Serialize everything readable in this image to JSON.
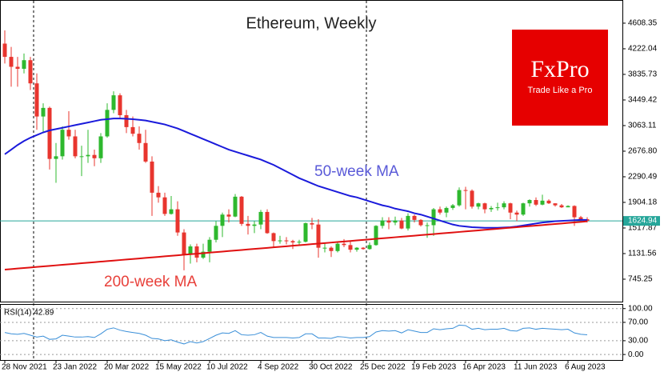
{
  "chart_data": {
    "type": "candlestick",
    "title": "Ethereum, Weekly",
    "categories": [
      "28 Nov 2021",
      null,
      null,
      null,
      null,
      null,
      null,
      null,
      "23 Jan 2022",
      null,
      null,
      null,
      null,
      null,
      null,
      null,
      "20 Mar 2022",
      null,
      null,
      null,
      null,
      null,
      null,
      null,
      "15 May 2022",
      null,
      null,
      null,
      null,
      null,
      null,
      null,
      "10 Jul 2022",
      null,
      null,
      null,
      null,
      null,
      null,
      null,
      "4 Sep 2022",
      null,
      null,
      null,
      null,
      null,
      null,
      null,
      "30 Oct 2022",
      null,
      null,
      null,
      null,
      null,
      null,
      null,
      "25 Dec 2022",
      null,
      null,
      null,
      null,
      null,
      null,
      null,
      "19 Feb 2023",
      null,
      null,
      null,
      null,
      null,
      null,
      null,
      "16 Apr 2023",
      null,
      null,
      null,
      null,
      null,
      null,
      null,
      "11 Jun 2023",
      null,
      null,
      null,
      null,
      null,
      null,
      null,
      "6 Aug 2023",
      null,
      null,
      null
    ],
    "open": [
      4300,
      4100,
      3950,
      3920,
      4050,
      3700,
      3200,
      3330,
      2560,
      2600,
      3000,
      2900,
      2600,
      2600,
      2620,
      2570,
      2900,
      3300,
      3520,
      3220,
      3040,
      2940,
      2800,
      2520,
      2050,
      1980,
      1730,
      1800,
      1450,
      1120,
      1240,
      1070,
      1160,
      1340,
      1550,
      1720,
      1690,
      1990,
      1580,
      1550,
      1570,
      1760,
      1440,
      1320,
      1330,
      1320,
      1300,
      1310,
      1590,
      1570,
      1220,
      1220,
      1170,
      1280,
      1260,
      1190,
      1220,
      1200,
      1260,
      1550,
      1630,
      1600,
      1630,
      1510,
      1700,
      1640,
      1560,
      1560,
      1800,
      1750,
      1820,
      1860,
      2090,
      2080,
      1840,
      1890,
      1800,
      1820,
      1830,
      1890,
      1750,
      1720,
      1890,
      1940,
      1870,
      1930,
      1890,
      1860,
      1830,
      1850,
      1680,
      1650
    ],
    "high": [
      4500,
      4250,
      4100,
      4150,
      4100,
      3850,
      3400,
      3350,
      2800,
      3050,
      3280,
      3000,
      2760,
      3000,
      2700,
      2950,
      3400,
      3580,
      3550,
      3300,
      3200,
      3050,
      3000,
      2600,
      2150,
      2050,
      2000,
      1920,
      1500,
      1270,
      1280,
      1280,
      1380,
      1620,
      1750,
      1800,
      2030,
      2000,
      1700,
      1620,
      1790,
      1800,
      1450,
      1400,
      1380,
      1340,
      1340,
      1600,
      1670,
      1650,
      1290,
      1240,
      1300,
      1350,
      1330,
      1230,
      1230,
      1300,
      1560,
      1680,
      1680,
      1690,
      1670,
      1740,
      1720,
      1650,
      1600,
      1820,
      1840,
      1840,
      1880,
      2130,
      2140,
      2100,
      1900,
      1900,
      1850,
      1900,
      1920,
      1900,
      1780,
      1900,
      1950,
      1980,
      2020,
      1950,
      1890,
      1880,
      1860,
      1860,
      1700,
      1680
    ],
    "low": [
      4000,
      3650,
      3650,
      3850,
      3600,
      3000,
      2950,
      2400,
      2200,
      2550,
      2850,
      2570,
      2300,
      2500,
      2450,
      2500,
      2880,
      3250,
      3180,
      2950,
      2900,
      2700,
      2500,
      1700,
      1900,
      1700,
      1720,
      1400,
      880,
      980,
      1000,
      1050,
      1000,
      1300,
      1380,
      1600,
      1680,
      1550,
      1420,
      1440,
      1500,
      1430,
      1220,
      1280,
      1270,
      1200,
      1260,
      1300,
      1500,
      1070,
      1150,
      1080,
      1150,
      1230,
      1150,
      1160,
      1190,
      1190,
      1250,
      1510,
      1500,
      1560,
      1500,
      1480,
      1600,
      1540,
      1370,
      1400,
      1720,
      1680,
      1790,
      1840,
      1800,
      1810,
      1800,
      1740,
      1760,
      1780,
      1800,
      1650,
      1620,
      1700,
      1840,
      1850,
      1860,
      1880,
      1840,
      1820,
      1830,
      1550,
      1610,
      1600
    ],
    "close": [
      4100,
      3950,
      3920,
      4050,
      3700,
      3200,
      3330,
      2560,
      2600,
      3000,
      2900,
      2600,
      2600,
      2620,
      2570,
      2900,
      3300,
      3520,
      3220,
      3040,
      2940,
      2800,
      2520,
      2050,
      1980,
      1730,
      1800,
      1450,
      1120,
      1240,
      1070,
      1160,
      1340,
      1550,
      1720,
      1690,
      1990,
      1580,
      1550,
      1570,
      1760,
      1440,
      1320,
      1330,
      1320,
      1300,
      1310,
      1590,
      1570,
      1220,
      1220,
      1170,
      1280,
      1260,
      1190,
      1220,
      1200,
      1260,
      1550,
      1630,
      1600,
      1630,
      1510,
      1700,
      1640,
      1560,
      1560,
      1800,
      1750,
      1820,
      1860,
      2090,
      2080,
      1840,
      1890,
      1800,
      1820,
      1830,
      1890,
      1750,
      1720,
      1890,
      1940,
      1870,
      1930,
      1890,
      1860,
      1830,
      1850,
      1680,
      1650,
      1624.94
    ],
    "up_color": "#2eb82e",
    "down_color": "#e8352e",
    "last_price_color": "#26a69a",
    "ylim": [
      407,
      4958
    ],
    "yticks": [
      4608.35,
      4222.04,
      3835.73,
      3449.42,
      3063.11,
      {
        "value": 2676.8,
        "label": "2676.80"
      },
      2290.49,
      1904.18,
      1517.87,
      1131.56,
      745.25
    ],
    "lines": [
      {
        "name": "50-week MA",
        "color": "#1a1adb",
        "label_color": "#5a5ad8",
        "values": [
          2630,
          2700,
          2770,
          2830,
          2880,
          2920,
          2960,
          2990,
          3010,
          3030,
          3050,
          3070,
          3090,
          3110,
          3130,
          3150,
          3160,
          3170,
          3170,
          3165,
          3160,
          3150,
          3140,
          3120,
          3100,
          3080,
          3050,
          3020,
          2980,
          2940,
          2900,
          2860,
          2820,
          2780,
          2740,
          2700,
          2670,
          2640,
          2610,
          2580,
          2550,
          2510,
          2470,
          2420,
          2370,
          2320,
          2270,
          2230,
          2190,
          2150,
          2120,
          2090,
          2060,
          2030,
          2000,
          1980,
          1950,
          1920,
          1890,
          1860,
          1840,
          1810,
          1790,
          1770,
          1740,
          1720,
          1690,
          1660,
          1630,
          1600,
          1570,
          1550,
          1540,
          1530,
          1525,
          1520,
          1520,
          1520,
          1525,
          1530,
          1540,
          1555,
          1570,
          1585,
          1600,
          1610,
          1620,
          1625,
          1630,
          1635,
          1640,
          1640
        ]
      },
      {
        "name": "200-week MA",
        "color": "#e01010",
        "label_color": "#e8403a",
        "values": [
          890,
          898,
          906,
          914,
          922,
          930,
          938,
          946,
          954,
          962,
          970,
          978,
          986,
          994,
          1002,
          1010,
          1018,
          1026,
          1034,
          1042,
          1050,
          1058,
          1066,
          1074,
          1082,
          1090,
          1098,
          1106,
          1114,
          1122,
          1130,
          1138,
          1146,
          1154,
          1162,
          1170,
          1178,
          1186,
          1194,
          1202,
          1210,
          1218,
          1226,
          1234,
          1242,
          1250,
          1258,
          1266,
          1274,
          1282,
          1290,
          1298,
          1306,
          1314,
          1322,
          1330,
          1338,
          1346,
          1354,
          1362,
          1370,
          1378,
          1386,
          1394,
          1402,
          1410,
          1418,
          1426,
          1434,
          1442,
          1450,
          1458,
          1466,
          1474,
          1482,
          1490,
          1498,
          1506,
          1514,
          1522,
          1530,
          1538,
          1546,
          1554,
          1562,
          1570,
          1578,
          1586,
          1594,
          1602,
          1610,
          1618
        ]
      }
    ],
    "rsi": {
      "title": "RSI(14) 42.89",
      "color": "#3a8fd8",
      "ylim": [
        -12,
        110
      ],
      "yticks": [
        {
          "value": 100,
          "label": "100.00"
        },
        {
          "value": 70,
          "label": "70.00"
        },
        {
          "value": 30,
          "label": "30.00"
        },
        {
          "value": 0,
          "label": "0.00"
        }
      ],
      "values": [
        48,
        45,
        44,
        46,
        42,
        38,
        40,
        33,
        34,
        42,
        40,
        38,
        38,
        39,
        37,
        45,
        55,
        58,
        53,
        50,
        48,
        46,
        42,
        35,
        34,
        30,
        32,
        27,
        23,
        28,
        25,
        28,
        35,
        42,
        47,
        46,
        52,
        43,
        42,
        43,
        48,
        40,
        37,
        37,
        37,
        36,
        37,
        45,
        45,
        36,
        36,
        35,
        39,
        38,
        36,
        37,
        37,
        39,
        49,
        52,
        51,
        52,
        47,
        54,
        51,
        48,
        48,
        56,
        54,
        56,
        57,
        64,
        63,
        55,
        57,
        54,
        55,
        55,
        57,
        52,
        51,
        57,
        58,
        55,
        57,
        56,
        55,
        54,
        55,
        47,
        44,
        42.89
      ]
    }
  },
  "logo": {
    "name": "FxPro",
    "slogan": "Trade Like a Pro"
  }
}
